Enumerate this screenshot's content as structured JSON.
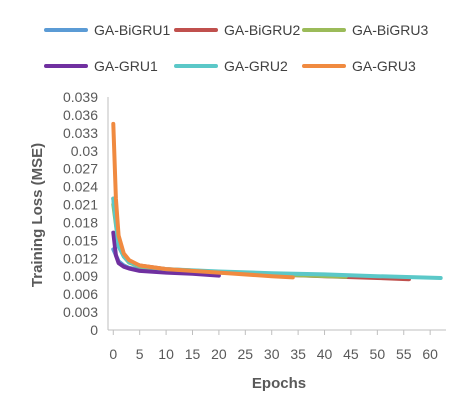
{
  "chart_data": {
    "type": "line",
    "title": "",
    "xlabel": "Epochs",
    "ylabel": "Training Loss (MSE)",
    "xlim": [
      -1,
      63
    ],
    "ylim": [
      0,
      0.039
    ],
    "x_ticks": [
      "0",
      "5",
      "10",
      "15",
      "20",
      "25",
      "30",
      "35",
      "40",
      "45",
      "50",
      "55",
      "60"
    ],
    "y_ticks": [
      "0",
      "0.003",
      "0.006",
      "0.009",
      "0.012",
      "0.015",
      "0.018",
      "0.021",
      "0.024",
      "0.027",
      "0.03",
      "0.033",
      "0.036",
      "0.039"
    ],
    "grid": false,
    "legend_position": "top",
    "series": [
      {
        "name": "GA-BiGRU1",
        "color": "#5B9BD5",
        "x": [
          0,
          1,
          2,
          3,
          5,
          8,
          10
        ],
        "y": [
          0.0135,
          0.0115,
          0.0108,
          0.0104,
          0.0101,
          0.0099,
          0.0098
        ]
      },
      {
        "name": "GA-BiGRU2",
        "color": "#C0504D",
        "x": [
          0,
          1,
          2,
          3,
          5,
          10,
          20,
          30,
          40,
          50,
          56
        ],
        "y": [
          0.022,
          0.0145,
          0.0125,
          0.0115,
          0.0108,
          0.0102,
          0.0097,
          0.0093,
          0.009,
          0.0087,
          0.0085
        ]
      },
      {
        "name": "GA-BiGRU3",
        "color": "#9BBB59",
        "x": [
          0,
          1,
          2,
          3,
          5,
          10,
          20,
          30,
          44
        ],
        "y": [
          0.021,
          0.0142,
          0.0123,
          0.0113,
          0.0106,
          0.0101,
          0.0096,
          0.0093,
          0.0089
        ]
      },
      {
        "name": "GA-GRU1",
        "color": "#7030A0",
        "x": [
          0,
          0.5,
          1,
          2,
          3,
          5,
          10,
          15,
          20
        ],
        "y": [
          0.0163,
          0.0125,
          0.0112,
          0.0106,
          0.0103,
          0.0099,
          0.0096,
          0.0094,
          0.0091
        ]
      },
      {
        "name": "GA-GRU2",
        "color": "#5BC8C8",
        "x": [
          0,
          1,
          2,
          3,
          5,
          10,
          20,
          30,
          40,
          50,
          62
        ],
        "y": [
          0.022,
          0.014,
          0.0123,
          0.0114,
          0.0107,
          0.0102,
          0.0098,
          0.0095,
          0.0093,
          0.009,
          0.0087
        ]
      },
      {
        "name": "GA-GRU3",
        "color": "#F08A40",
        "x": [
          0,
          0.5,
          1,
          2,
          3,
          5,
          10,
          20,
          30,
          34
        ],
        "y": [
          0.0345,
          0.022,
          0.0158,
          0.0128,
          0.0117,
          0.0108,
          0.0102,
          0.0096,
          0.009,
          0.0088
        ]
      }
    ]
  }
}
